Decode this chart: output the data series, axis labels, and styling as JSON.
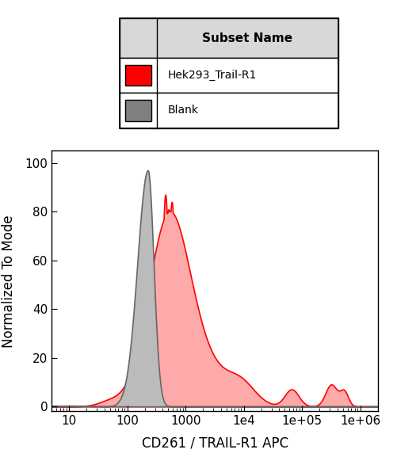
{
  "title": "",
  "xlabel": "CD261 / TRAIL-R1 APC",
  "ylabel": "Normalized To Mode",
  "xlim_log": [
    0.7,
    6.3
  ],
  "ylim": [
    -2,
    105
  ],
  "legend_title": "Subset Name",
  "series": [
    {
      "name": "Hek293_Trail-R1",
      "face_color": "#FFAAAA",
      "edge_color": "#FF0000",
      "alpha": 1.0,
      "legend_color": "#FF0000"
    },
    {
      "name": "Blank",
      "face_color": "#BBBBBB",
      "edge_color": "#666666",
      "alpha": 1.0,
      "legend_color": "#808080"
    }
  ],
  "yticks": [
    0,
    20,
    40,
    60,
    80,
    100
  ],
  "background_color": "#ffffff",
  "legend_header_bg": "#D8D8D8",
  "legend_box_bg": "#FFFFFF"
}
